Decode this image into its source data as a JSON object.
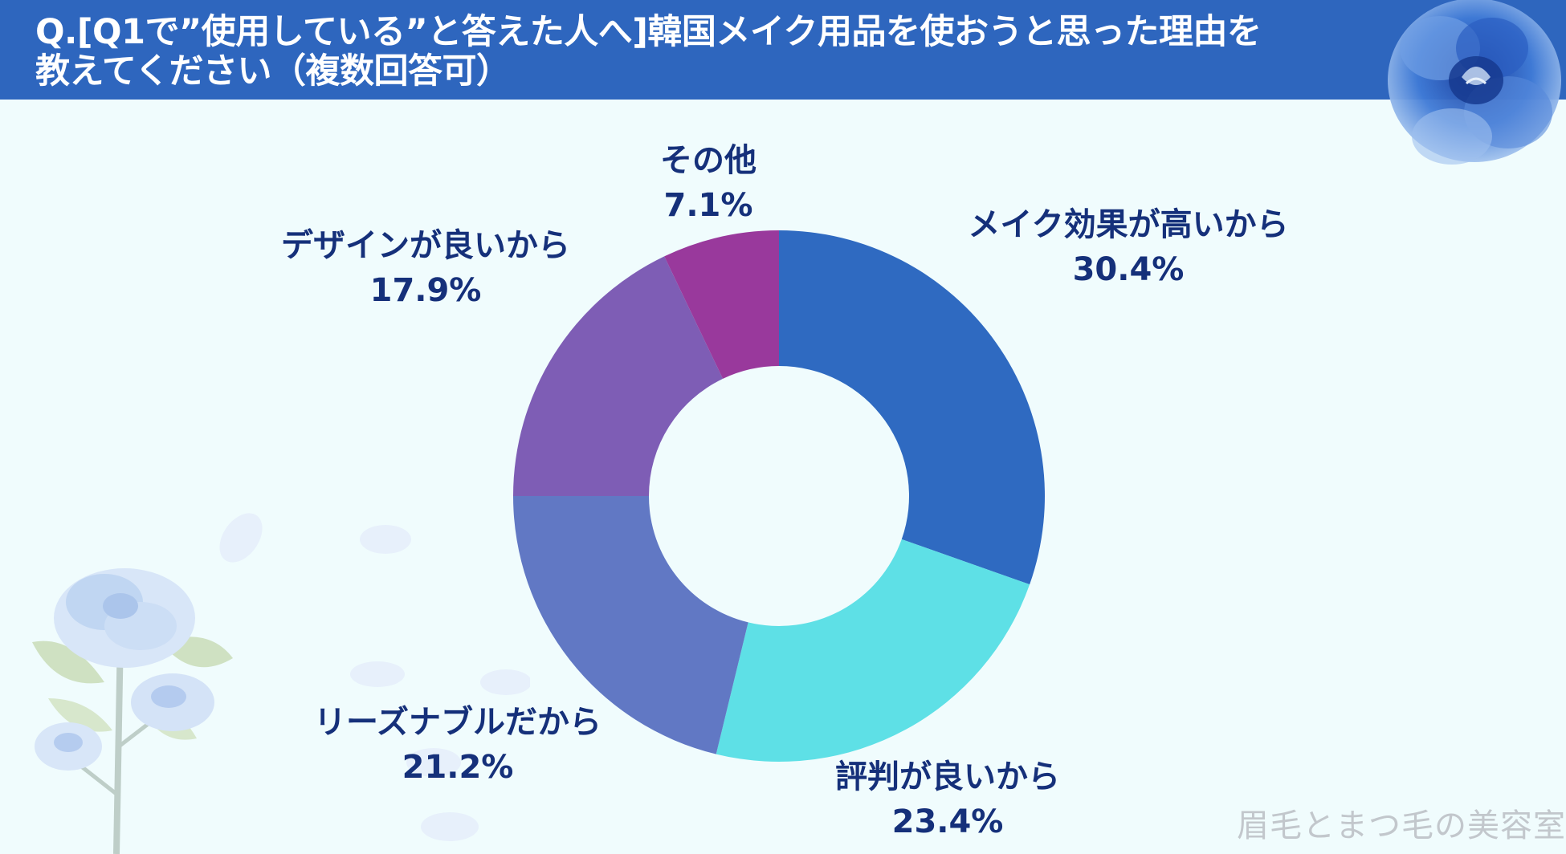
{
  "header": {
    "title_line1": "Q.[Q1で”使用している”と答えた人へ]韓国メイク用品を使おうと思った理由を",
    "title_line2": "教えてください（複数回答可）"
  },
  "watermark": "眉毛とまつ毛の美容室",
  "colors": {
    "header_bg": "#2e66be",
    "label_text": "#15307a",
    "background": "#f0fcfd"
  },
  "chart_data": {
    "type": "pie",
    "donut": true,
    "start_angle_deg": 0,
    "direction": "clockwise",
    "legend": "none",
    "slices": [
      {
        "label": "メイク効果が高いから",
        "value": 30.4,
        "value_label": "30.4%",
        "color": "#2f6ac1"
      },
      {
        "label": "評判が良いから",
        "value": 23.4,
        "value_label": "23.4%",
        "color": "#5ee0e6"
      },
      {
        "label": "リーズナブルだから",
        "value": 21.2,
        "value_label": "21.2%",
        "color": "#6178c4"
      },
      {
        "label": "デザインが良いから",
        "value": 17.9,
        "value_label": "17.9%",
        "color": "#7e5db5"
      },
      {
        "label": "その他",
        "value": 7.1,
        "value_label": "7.1%",
        "color": "#99399c"
      }
    ]
  }
}
